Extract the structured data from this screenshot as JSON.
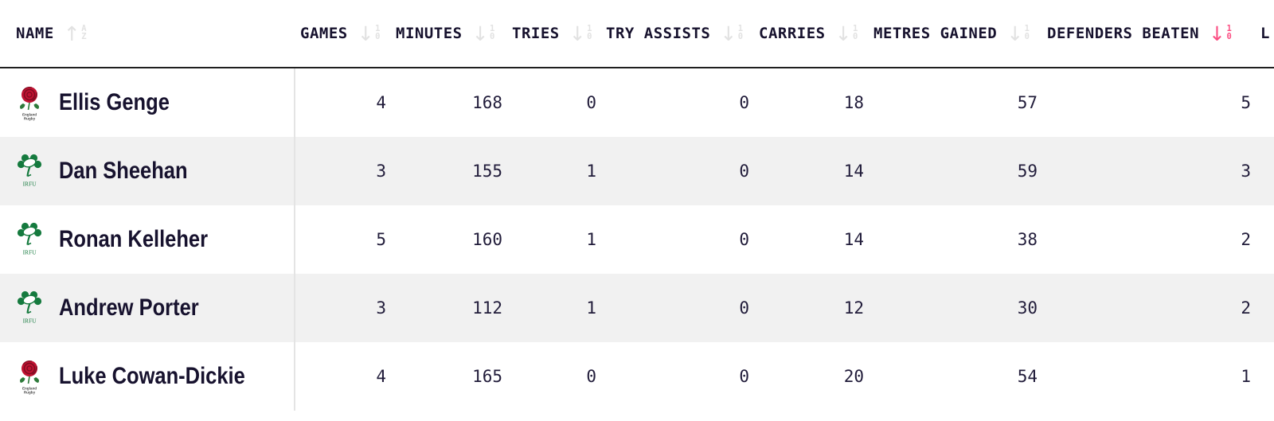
{
  "colors": {
    "accent_pink": "#fb4d82",
    "header_text": "#17122e",
    "value_text": "#211c3a",
    "row_stripe": "#f1f1f1",
    "inactive_sort_icon": "#e2e2e2",
    "header_divider": "#1f1f1f",
    "column_divider": "#e4e4e4",
    "england_red": "#c01231",
    "irfu_green": "#157a3e"
  },
  "table": {
    "columns": [
      {
        "key": "name",
        "label": "NAME",
        "sort": {
          "direction": "up",
          "chars": [
            "A",
            "Z"
          ],
          "active": false
        }
      },
      {
        "key": "games",
        "label": "GAMES",
        "sort": {
          "direction": "down",
          "chars": [
            "1",
            "0"
          ],
          "active": false
        }
      },
      {
        "key": "minutes",
        "label": "MINUTES",
        "sort": {
          "direction": "down",
          "chars": [
            "1",
            "0"
          ],
          "active": false
        }
      },
      {
        "key": "tries",
        "label": "TRIES",
        "sort": {
          "direction": "down",
          "chars": [
            "1",
            "0"
          ],
          "active": false
        }
      },
      {
        "key": "try_assists",
        "label": "TRY ASSISTS",
        "sort": {
          "direction": "down",
          "chars": [
            "1",
            "0"
          ],
          "active": false
        }
      },
      {
        "key": "carries",
        "label": "CARRIES",
        "sort": {
          "direction": "down",
          "chars": [
            "1",
            "0"
          ],
          "active": false
        }
      },
      {
        "key": "metres_gained",
        "label": "METRES GAINED",
        "sort": {
          "direction": "down",
          "chars": [
            "1",
            "0"
          ],
          "active": false
        }
      },
      {
        "key": "defenders_beaten",
        "label": "DEFENDERS BEATEN",
        "sort": {
          "direction": "down",
          "chars": [
            "1",
            "0"
          ],
          "active": true
        }
      },
      {
        "key": "next_truncated",
        "label": "L",
        "sort": null
      }
    ],
    "rows": [
      {
        "name": "Ellis Genge",
        "team": "england",
        "games": "4",
        "minutes": "168",
        "tries": "0",
        "try_assists": "0",
        "carries": "18",
        "metres_gained": "57",
        "defenders_beaten": "5"
      },
      {
        "name": "Dan Sheehan",
        "team": "irfu",
        "games": "3",
        "minutes": "155",
        "tries": "1",
        "try_assists": "0",
        "carries": "14",
        "metres_gained": "59",
        "defenders_beaten": "3"
      },
      {
        "name": "Ronan Kelleher",
        "team": "irfu",
        "games": "5",
        "minutes": "160",
        "tries": "1",
        "try_assists": "0",
        "carries": "14",
        "metres_gained": "38",
        "defenders_beaten": "2"
      },
      {
        "name": "Andrew Porter",
        "team": "irfu",
        "games": "3",
        "minutes": "112",
        "tries": "1",
        "try_assists": "0",
        "carries": "12",
        "metres_gained": "30",
        "defenders_beaten": "2"
      },
      {
        "name": "Luke Cowan-Dickie",
        "team": "england",
        "games": "4",
        "minutes": "165",
        "tries": "0",
        "try_assists": "0",
        "carries": "20",
        "metres_gained": "54",
        "defenders_beaten": "1"
      }
    ],
    "logos": {
      "england": {
        "caption_line1": "England",
        "caption_line2": "Rugby"
      },
      "irfu": {
        "caption": "IRFU"
      }
    }
  }
}
